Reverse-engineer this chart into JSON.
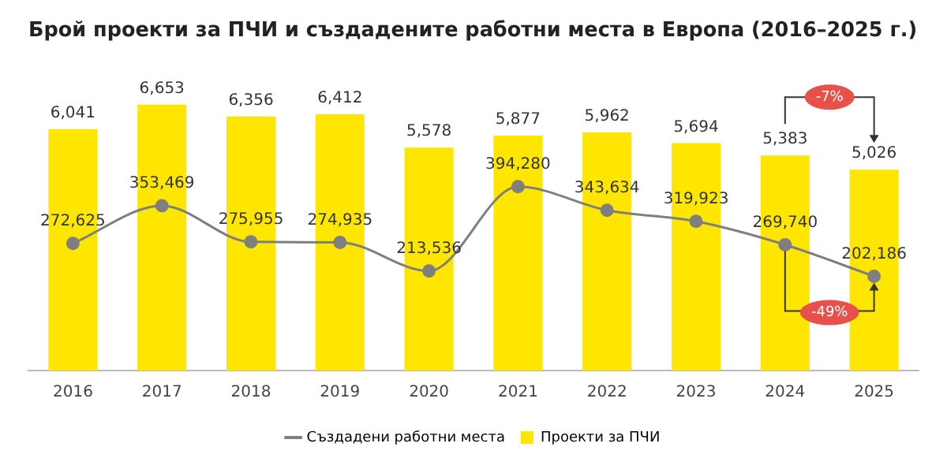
{
  "chart_data": {
    "type": "bar",
    "title": "Брой проекти за ПЧИ и създадените работни места в Европа (2016–2025 г.)",
    "categories": [
      "2016",
      "2017",
      "2018",
      "2019",
      "2020",
      "2021",
      "2022",
      "2023",
      "2024",
      "2025"
    ],
    "series": [
      {
        "name": "Създадени работни места",
        "type": "line",
        "axis": "y2",
        "color": "#7f7f7f",
        "values": [
          272625,
          353469,
          275955,
          274935,
          213536,
          394280,
          343634,
          319923,
          269740,
          202186
        ],
        "value_labels": [
          "272,625",
          "353,469",
          "275,955",
          "274,935",
          "213,536",
          "394,280",
          "343,634",
          "319,923",
          "269,740",
          "202,186"
        ]
      },
      {
        "name": "Проекти за ПЧИ",
        "color": "#ffe600",
        "values": [
          6041,
          6653,
          6356,
          6412,
          5578,
          5877,
          5962,
          5694,
          5383,
          5026
        ],
        "value_labels": [
          "6,041",
          "6,653",
          "6,356",
          "6,412",
          "5,578",
          "5,877",
          "5,962",
          "5,694",
          "5,383",
          "5,026"
        ]
      }
    ],
    "legend": "bottom",
    "tick_labels": "x",
    "marker": "circle",
    "line_style": "solid",
    "annotations": [
      "-7%",
      "-49%"
    ]
  }
}
